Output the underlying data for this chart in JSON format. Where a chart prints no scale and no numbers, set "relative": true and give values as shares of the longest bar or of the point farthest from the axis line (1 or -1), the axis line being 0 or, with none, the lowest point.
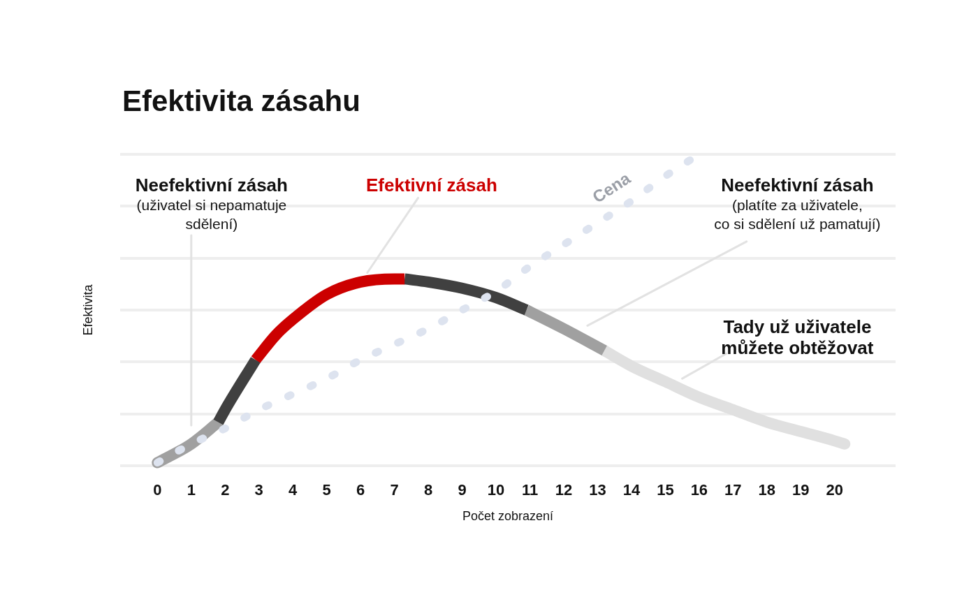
{
  "chart_data": {
    "type": "line",
    "title": "Efektivita zásahu",
    "xlabel": "Počet zobrazení",
    "ylabel": "Efektivita",
    "relative": true,
    "grid": "y",
    "xlim": [
      -1.1,
      21.8
    ],
    "xticks": [
      0,
      1,
      2,
      3,
      4,
      5,
      6,
      7,
      8,
      9,
      10,
      11,
      12,
      13,
      14,
      15,
      16,
      17,
      18,
      19,
      20
    ],
    "series": [
      {
        "color": "#a0a0a0",
        "x": [
          0,
          1,
          1.8
        ],
        "values": [
          0.01,
          0.07,
          0.14
        ]
      },
      {
        "color": "#404040",
        "x": [
          1.8,
          2,
          2.9
        ],
        "values": [
          0.14,
          0.18,
          0.34
        ]
      },
      {
        "color": "#cc0000",
        "x": [
          2.9,
          3.5,
          4,
          5,
          6,
          7,
          7.3
        ],
        "values": [
          0.34,
          0.42,
          0.47,
          0.55,
          0.59,
          0.6,
          0.6
        ]
      },
      {
        "color": "#404040",
        "x": [
          7.3,
          8,
          9,
          10,
          10.9
        ],
        "values": [
          0.6,
          0.59,
          0.57,
          0.54,
          0.5
        ]
      },
      {
        "color": "#a0a0a0",
        "x": [
          10.9,
          12,
          13.2
        ],
        "values": [
          0.5,
          0.44,
          0.37
        ]
      },
      {
        "color": "#e0e0e0",
        "x": [
          13.2,
          14,
          15,
          16,
          17,
          18,
          19,
          20,
          20.3
        ],
        "values": [
          0.37,
          0.32,
          0.27,
          0.22,
          0.18,
          0.14,
          0.11,
          0.08,
          0.07
        ]
      },
      {
        "name": "Cena",
        "color": "#dde3ef",
        "line_style": "dotted",
        "x": [
          0,
          1,
          2,
          3,
          4,
          5,
          6,
          7,
          8,
          9,
          10,
          11,
          12,
          13,
          14,
          15,
          16
        ],
        "values": [
          0.01,
          0.07,
          0.12,
          0.18,
          0.23,
          0.28,
          0.34,
          0.39,
          0.44,
          0.5,
          0.56,
          0.64,
          0.71,
          0.78,
          0.85,
          0.93,
          1
        ]
      }
    ],
    "annotations": [
      "Neefektivní zásah\n(uživatel si nepamatuje\nsdělení)",
      "Efektivní zásah",
      "Neefektivní zásah\n(platíte za uživatele,\nco si sdělení už pamatují)",
      "Tady už uživatele\nmůžete obtěžovat"
    ]
  }
}
